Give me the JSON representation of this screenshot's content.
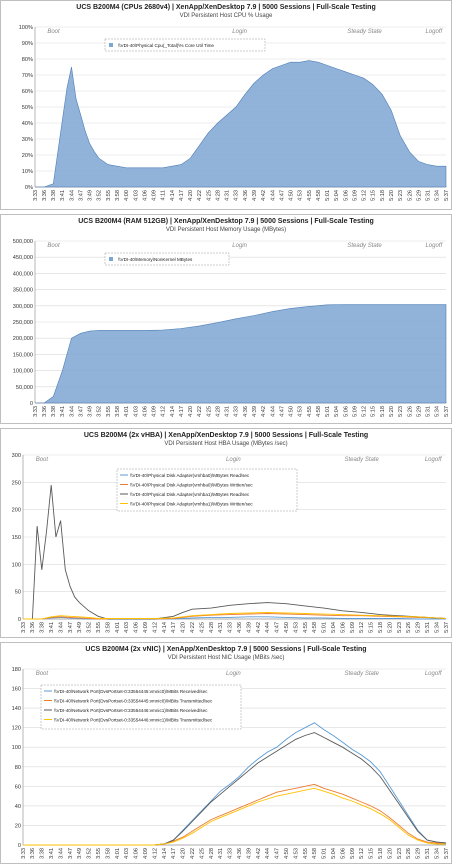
{
  "chart_data": [
    {
      "type": "area",
      "title": "UCS B200M4 (CPUs 2680v4) | XenApp/XenDesktop 7.9 | 5000 Sessions | Full-Scale Testing",
      "subtitle": "VDI Persistent Host CPU % Usage",
      "phases": [
        "Boot",
        "Login",
        "Steady State",
        "Logoff"
      ],
      "ytick_labels": [
        "0%",
        "10%",
        "20%",
        "30%",
        "40%",
        "50%",
        "60%",
        "70%",
        "80%",
        "90%",
        "100%"
      ],
      "ylim": [
        0,
        100
      ],
      "xtick_labels": [
        "3:33",
        "3:36",
        "3:38",
        "3:41",
        "3:44",
        "3:47",
        "3:49",
        "3:52",
        "3:55",
        "3:58",
        "4:00",
        "4:03",
        "4:06",
        "4:09",
        "4:11",
        "4:14",
        "4:17",
        "4:20",
        "4:22",
        "4:25",
        "4:28",
        "4:31",
        "4:33",
        "4:36",
        "4:39",
        "4:42",
        "4:44",
        "4:47",
        "4:50",
        "4:53",
        "4:55",
        "4:58",
        "5:01",
        "5:04",
        "5:06",
        "5:09",
        "5:12",
        "5:15",
        "5:18",
        "5:20",
        "5:23",
        "5:26",
        "5:29",
        "5:31",
        "5:34",
        "5:37"
      ],
      "series": [
        {
          "name": "\\\\VDI-40\\Physical Cpu(_Total)\\% Core Util Time",
          "color": "#7ea6d3",
          "x": [
            0,
            1,
            2,
            3,
            3.5,
            4,
            4.5,
            5,
            5.5,
            6,
            6.5,
            7,
            8,
            9,
            10,
            11,
            12,
            13,
            14,
            15,
            16,
            17,
            18,
            19,
            20,
            21,
            22,
            23,
            24,
            25,
            26,
            27,
            28,
            29,
            30,
            31,
            32,
            33,
            34,
            35,
            36,
            37,
            38,
            39,
            40,
            41,
            42,
            43,
            44,
            45
          ],
          "values": [
            0,
            0,
            2,
            42,
            62,
            75,
            55,
            45,
            35,
            27,
            22,
            18,
            14,
            13,
            12,
            12,
            12,
            12,
            12,
            13,
            14,
            18,
            26,
            34,
            40,
            45,
            50,
            58,
            65,
            70,
            74,
            76,
            78,
            78,
            79,
            78,
            76,
            74,
            72,
            70,
            68,
            64,
            58,
            48,
            32,
            22,
            16,
            14,
            13,
            13
          ]
        }
      ],
      "legend_position": "top-left",
      "grid": true
    },
    {
      "type": "area",
      "title": "UCS B200M4 (RAM 512GB) | XenApp/XenDesktop 7.9 | 5000 Sessions | Full-Scale Testing",
      "subtitle": "VDI Persistent Host Memory Usage (MBytes)",
      "phases": [
        "Boot",
        "Login",
        "Steady State",
        "Logoff"
      ],
      "ytick_labels": [
        "0",
        "50,000",
        "100,000",
        "150,000",
        "200,000",
        "250,000",
        "300,000",
        "350,000",
        "400,000",
        "450,000",
        "500,000"
      ],
      "ylim": [
        0,
        500000
      ],
      "xtick_labels": [
        "3:33",
        "3:36",
        "3:38",
        "3:41",
        "3:44",
        "3:47",
        "3:49",
        "3:52",
        "3:55",
        "3:58",
        "4:01",
        "4:03",
        "4:06",
        "4:09",
        "4:12",
        "4:14",
        "4:17",
        "4:20",
        "4:22",
        "4:25",
        "4:28",
        "4:31",
        "4:33",
        "4:36",
        "4:39",
        "4:42",
        "4:44",
        "4:47",
        "4:50",
        "4:53",
        "4:55",
        "4:58",
        "5:01",
        "5:04",
        "5:06",
        "5:09",
        "5:12",
        "5:15",
        "5:18",
        "5:20",
        "5:23",
        "5:26",
        "5:29",
        "5:31",
        "5:34",
        "5:37"
      ],
      "series": [
        {
          "name": "\\\\VDI-40\\Memory\\NonKernel MBytes",
          "color": "#7ea6d3",
          "x": [
            0,
            1,
            2,
            3,
            4,
            5,
            6,
            7,
            8,
            10,
            12,
            14,
            16,
            18,
            20,
            22,
            24,
            26,
            28,
            30,
            32,
            34,
            36,
            38,
            40,
            42,
            44,
            45
          ],
          "values": [
            0,
            0,
            20000,
            100000,
            200000,
            215000,
            222000,
            224000,
            224000,
            224000,
            224000,
            225000,
            230000,
            238000,
            248000,
            260000,
            270000,
            282000,
            292000,
            298000,
            303000,
            304000,
            304000,
            304000,
            304000,
            304000,
            304000,
            304000
          ]
        }
      ],
      "legend_position": "top-left",
      "grid": true
    },
    {
      "type": "line",
      "title": "UCS B200M4 (2x vHBA) | XenApp/XenDesktop 7.9 | 5000 Sessions | Full-Scale Testing",
      "subtitle": "VDI Persistent Host HBA Usage (MBytes /sec)",
      "phases": [
        "Boot",
        "Login",
        "Steady State",
        "Logoff"
      ],
      "ytick_labels": [
        "0",
        "50",
        "100",
        "150",
        "200",
        "250",
        "300"
      ],
      "ylim": [
        0,
        300
      ],
      "xtick_labels": [
        "3:33",
        "3:36",
        "3:38",
        "3:41",
        "3:44",
        "3:47",
        "3:49",
        "3:52",
        "3:55",
        "3:58",
        "4:01",
        "4:03",
        "4:06",
        "4:09",
        "4:12",
        "4:14",
        "4:17",
        "4:20",
        "4:22",
        "4:25",
        "4:28",
        "4:31",
        "4:33",
        "4:36",
        "4:39",
        "4:42",
        "4:44",
        "4:47",
        "4:50",
        "4:53",
        "4:55",
        "4:58",
        "5:01",
        "5:04",
        "5:06",
        "5:09",
        "5:12",
        "5:15",
        "5:18",
        "5:20",
        "5:23",
        "5:26",
        "5:29",
        "5:31",
        "5:34",
        "5:37"
      ],
      "series": [
        {
          "name": "\\\\VDI-40\\Physical Disk Adapter(vmhba0)\\MBytes Read/sec",
          "color": "#5b9bd5",
          "x": [
            0,
            2,
            3,
            4,
            5,
            6,
            7,
            8,
            10,
            14,
            16,
            17,
            18,
            20,
            22,
            24,
            26,
            28,
            30,
            32,
            34,
            36,
            38,
            40,
            42,
            44,
            45
          ],
          "values": [
            0,
            0,
            2,
            3,
            2,
            1,
            0,
            0,
            0,
            0,
            0,
            1,
            2,
            3,
            3,
            4,
            4,
            3,
            2,
            2,
            1,
            1,
            1,
            1,
            0,
            0,
            0
          ]
        },
        {
          "name": "\\\\VDI-40\\Physical Disk Adapter(vmhba0)\\MBytes Written/sec",
          "color": "#ed7d31",
          "x": [
            0,
            2,
            3,
            4,
            5,
            6,
            7,
            8,
            10,
            14,
            16,
            17,
            18,
            20,
            22,
            24,
            26,
            28,
            30,
            32,
            34,
            36,
            38,
            40,
            42,
            44,
            45
          ],
          "values": [
            0,
            0,
            3,
            4,
            3,
            2,
            1,
            0,
            0,
            0,
            1,
            3,
            5,
            7,
            8,
            9,
            10,
            9,
            8,
            7,
            6,
            6,
            5,
            4,
            3,
            2,
            1
          ]
        },
        {
          "name": "\\\\VDI-40\\Physical Disk Adapter(vmhba1)\\MBytes Read/sec",
          "color": "#5a5a5a",
          "x": [
            0,
            1,
            1.5,
            2,
            2.5,
            3,
            3.5,
            4,
            4.5,
            5,
            5.5,
            6,
            7,
            8,
            9,
            10,
            14,
            16,
            17,
            18,
            20,
            22,
            24,
            26,
            28,
            30,
            32,
            34,
            36,
            38,
            40,
            42,
            44,
            45
          ],
          "values": [
            0,
            0,
            170,
            90,
            160,
            245,
            150,
            180,
            90,
            60,
            40,
            30,
            15,
            5,
            0,
            0,
            0,
            5,
            12,
            18,
            20,
            25,
            28,
            30,
            28,
            24,
            20,
            15,
            12,
            8,
            6,
            4,
            2,
            1
          ]
        },
        {
          "name": "\\\\VDI-40\\Physical Disk Adapter(vmhba1)\\MBytes Written/sec",
          "color": "#ffc000",
          "x": [
            0,
            2,
            3,
            4,
            5,
            6,
            7,
            8,
            10,
            14,
            16,
            17,
            18,
            20,
            22,
            24,
            26,
            28,
            30,
            32,
            34,
            36,
            38,
            40,
            42,
            44,
            45
          ],
          "values": [
            0,
            0,
            4,
            6,
            5,
            4,
            3,
            1,
            1,
            1,
            2,
            4,
            6,
            8,
            10,
            11,
            12,
            11,
            10,
            9,
            8,
            7,
            6,
            5,
            4,
            2,
            1
          ]
        }
      ],
      "legend_position": "top-center",
      "grid": true
    },
    {
      "type": "line",
      "title": "UCS B200M4 (2x vNIC) | XenApp/XenDesktop 7.9 | 5000 Sessions | Full-Scale Testing",
      "subtitle": "VDI Persistent Host NIC Usage (MBits /sec)",
      "phases": [
        "Boot",
        "Login",
        "Steady State",
        "Logoff"
      ],
      "ytick_labels": [
        "0",
        "20",
        "40",
        "60",
        "80",
        "100",
        "120",
        "140",
        "160",
        "180"
      ],
      "ylim": [
        0,
        180
      ],
      "xtick_labels": [
        "3:33",
        "3:36",
        "3:38",
        "3:41",
        "3:44",
        "3:47",
        "3:49",
        "3:52",
        "3:55",
        "3:58",
        "4:01",
        "4:03",
        "4:06",
        "4:09",
        "4:12",
        "4:14",
        "4:17",
        "4:20",
        "4:22",
        "4:25",
        "4:28",
        "4:31",
        "4:33",
        "4:36",
        "4:39",
        "4:42",
        "4:44",
        "4:47",
        "4:50",
        "4:53",
        "4:55",
        "4:58",
        "5:01",
        "5:04",
        "5:06",
        "5:09",
        "5:12",
        "5:15",
        "5:18",
        "5:20",
        "5:23",
        "5:26",
        "5:29",
        "5:31",
        "5:34",
        "5:37"
      ],
      "series": [
        {
          "name": "\\\\VDI-40\\Network Port(DvsPortset-0:33554445:vmnic0)\\MBits Received/sec",
          "color": "#5b9bd5",
          "x": [
            0,
            14,
            15,
            16,
            17,
            18,
            19,
            20,
            21,
            22,
            23,
            24,
            25,
            26,
            27,
            28,
            29,
            30,
            31,
            32,
            33,
            34,
            35,
            36,
            37,
            38,
            39,
            40,
            41,
            42,
            43,
            44,
            45
          ],
          "values": [
            0,
            0,
            1,
            5,
            15,
            25,
            35,
            45,
            55,
            62,
            70,
            80,
            88,
            95,
            100,
            108,
            115,
            120,
            125,
            118,
            112,
            105,
            98,
            92,
            85,
            75,
            60,
            45,
            30,
            15,
            5,
            3,
            2
          ]
        },
        {
          "name": "\\\\VDI-40\\Network Port(DvsPortset-0:33554445:vmnic0)\\MBits Transmitted/sec",
          "color": "#ed7d31",
          "x": [
            0,
            14,
            15,
            16,
            17,
            18,
            19,
            20,
            21,
            22,
            23,
            24,
            25,
            26,
            27,
            28,
            29,
            30,
            31,
            32,
            33,
            34,
            35,
            36,
            37,
            38,
            39,
            40,
            41,
            42,
            43,
            44,
            45
          ],
          "values": [
            0,
            0,
            1,
            4,
            8,
            14,
            20,
            26,
            30,
            34,
            38,
            42,
            46,
            50,
            54,
            56,
            58,
            60,
            62,
            58,
            55,
            52,
            48,
            44,
            40,
            35,
            28,
            20,
            12,
            6,
            3,
            2,
            1
          ]
        },
        {
          "name": "\\\\VDI-40\\Network Port(DvsPortset-0:33554446:vmnic1)\\MBits Received/sec",
          "color": "#5a5a5a",
          "x": [
            0,
            14,
            15,
            16,
            17,
            18,
            19,
            20,
            21,
            22,
            23,
            24,
            25,
            26,
            27,
            28,
            29,
            30,
            31,
            32,
            33,
            34,
            35,
            36,
            37,
            38,
            39,
            40,
            41,
            42,
            43,
            44,
            45
          ],
          "values": [
            0,
            0,
            1,
            5,
            14,
            24,
            34,
            44,
            52,
            60,
            68,
            76,
            84,
            90,
            96,
            102,
            108,
            112,
            115,
            110,
            105,
            100,
            94,
            88,
            80,
            70,
            56,
            42,
            28,
            14,
            5,
            3,
            2
          ]
        },
        {
          "name": "\\\\VDI-40\\Network Port(DvsPortset-0:33554446:vmnic1)\\MBits Transmitted/sec",
          "color": "#ffc000",
          "x": [
            0,
            14,
            15,
            16,
            17,
            18,
            19,
            20,
            21,
            22,
            23,
            24,
            25,
            26,
            27,
            28,
            29,
            30,
            31,
            32,
            33,
            34,
            35,
            36,
            37,
            38,
            39,
            40,
            41,
            42,
            43,
            44,
            45
          ],
          "values": [
            0,
            0,
            1,
            3,
            7,
            12,
            18,
            24,
            28,
            32,
            36,
            40,
            44,
            47,
            50,
            52,
            54,
            56,
            58,
            55,
            52,
            48,
            45,
            41,
            37,
            32,
            26,
            18,
            10,
            5,
            2,
            1,
            1
          ]
        }
      ],
      "legend_position": "top-left",
      "grid": true
    }
  ]
}
